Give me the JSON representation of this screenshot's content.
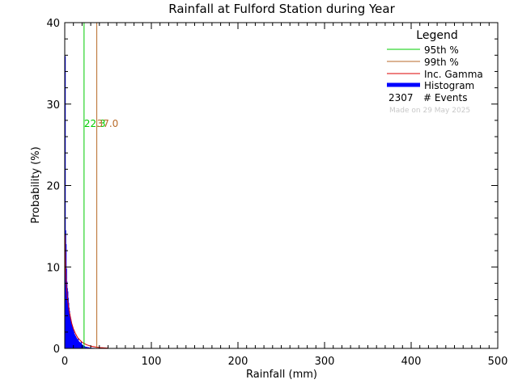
{
  "chart_data": {
    "type": "bar",
    "title": "Rainfall at Fulford Station during Year",
    "xlabel": "Rainfall (mm)",
    "ylabel": "Probability (%)",
    "xlim": [
      0,
      500
    ],
    "ylim": [
      0,
      40
    ],
    "x_ticks": [
      "0",
      "100",
      "200",
      "300",
      "400",
      "500"
    ],
    "y_ticks": [
      "0",
      "10",
      "20",
      "30",
      "40"
    ],
    "grid": false,
    "legend_position": "top-right",
    "legend": {
      "title": "Legend",
      "entries": [
        {
          "label": "95th %",
          "color": "#00cc00",
          "kind": "line"
        },
        {
          "label": "99th %",
          "color": "#b86a28",
          "kind": "line"
        },
        {
          "label": "Inc. Gamma",
          "color": "#dd0000",
          "kind": "line"
        },
        {
          "label": "Histogram",
          "color": "#0000ff",
          "kind": "thick"
        }
      ],
      "events_count": "2307",
      "events_label": "# Events",
      "made_on": "Made on 29 May 2025"
    },
    "percentiles": [
      {
        "name": "95th %",
        "x": 22.3,
        "label": "22.3",
        "color": "#00cc00"
      },
      {
        "name": "99th %",
        "x": 37.0,
        "label": "37.0",
        "color": "#b86a28"
      }
    ],
    "percentile_label_y": 27.2,
    "histogram": {
      "color": "#0000ff",
      "bins": [
        [
          0.0,
          35.9
        ],
        [
          0.5,
          14.5
        ],
        [
          1.0,
          12.8
        ],
        [
          1.5,
          9.8
        ],
        [
          2.0,
          8.2
        ],
        [
          2.5,
          7.4
        ],
        [
          3.0,
          7.0
        ],
        [
          3.5,
          6.2
        ],
        [
          4.0,
          5.6
        ],
        [
          4.5,
          5.0
        ],
        [
          5.0,
          4.6
        ],
        [
          5.5,
          4.2
        ],
        [
          6.0,
          3.9
        ],
        [
          6.5,
          3.6
        ],
        [
          7.0,
          3.3
        ],
        [
          7.5,
          3.0
        ],
        [
          8.0,
          2.8
        ],
        [
          8.5,
          2.6
        ],
        [
          9.0,
          2.4
        ],
        [
          9.5,
          2.2
        ],
        [
          10.0,
          2.0
        ],
        [
          10.5,
          1.8
        ],
        [
          11.0,
          1.7
        ],
        [
          11.5,
          1.6
        ],
        [
          12.0,
          1.5
        ],
        [
          12.5,
          1.4
        ],
        [
          13.0,
          1.3
        ],
        [
          13.5,
          1.2
        ],
        [
          14.0,
          1.1
        ],
        [
          14.5,
          1.0
        ],
        [
          15.0,
          1.2
        ],
        [
          15.5,
          0.9
        ],
        [
          16.0,
          0.8
        ],
        [
          16.5,
          0.8
        ],
        [
          17.0,
          0.7
        ],
        [
          17.5,
          0.7
        ],
        [
          18.0,
          0.6
        ],
        [
          18.5,
          0.9
        ],
        [
          19.0,
          0.5
        ],
        [
          19.5,
          0.5
        ],
        [
          20.0,
          0.4
        ],
        [
          20.5,
          0.4
        ],
        [
          21.0,
          0.3
        ],
        [
          21.5,
          0.3
        ],
        [
          22.0,
          0.3
        ],
        [
          22.5,
          0.3
        ],
        [
          23.0,
          0.2
        ],
        [
          23.5,
          0.2
        ],
        [
          24.0,
          0.2
        ],
        [
          24.5,
          0.2
        ],
        [
          25.0,
          0.2
        ],
        [
          26.0,
          0.15
        ],
        [
          27.0,
          0.15
        ],
        [
          28.0,
          0.1
        ],
        [
          29.0,
          0.1
        ],
        [
          30.0,
          0.1
        ],
        [
          32.0,
          0.08
        ],
        [
          34.0,
          0.06
        ],
        [
          36.0,
          0.05
        ],
        [
          38.0,
          0.04
        ],
        [
          40.0,
          0.03
        ],
        [
          43.0,
          0.02
        ]
      ],
      "bin_width": 0.5
    },
    "gamma_curve": {
      "color": "#dd0000",
      "x": [
        0.3,
        1,
        2,
        3,
        4,
        5,
        6,
        8,
        10,
        12,
        15,
        20,
        25,
        30,
        40,
        50
      ],
      "y": [
        14.0,
        9.5,
        7.6,
        6.3,
        5.4,
        4.7,
        4.1,
        3.1,
        2.4,
        1.9,
        1.3,
        0.75,
        0.45,
        0.27,
        0.1,
        0.04
      ]
    }
  }
}
